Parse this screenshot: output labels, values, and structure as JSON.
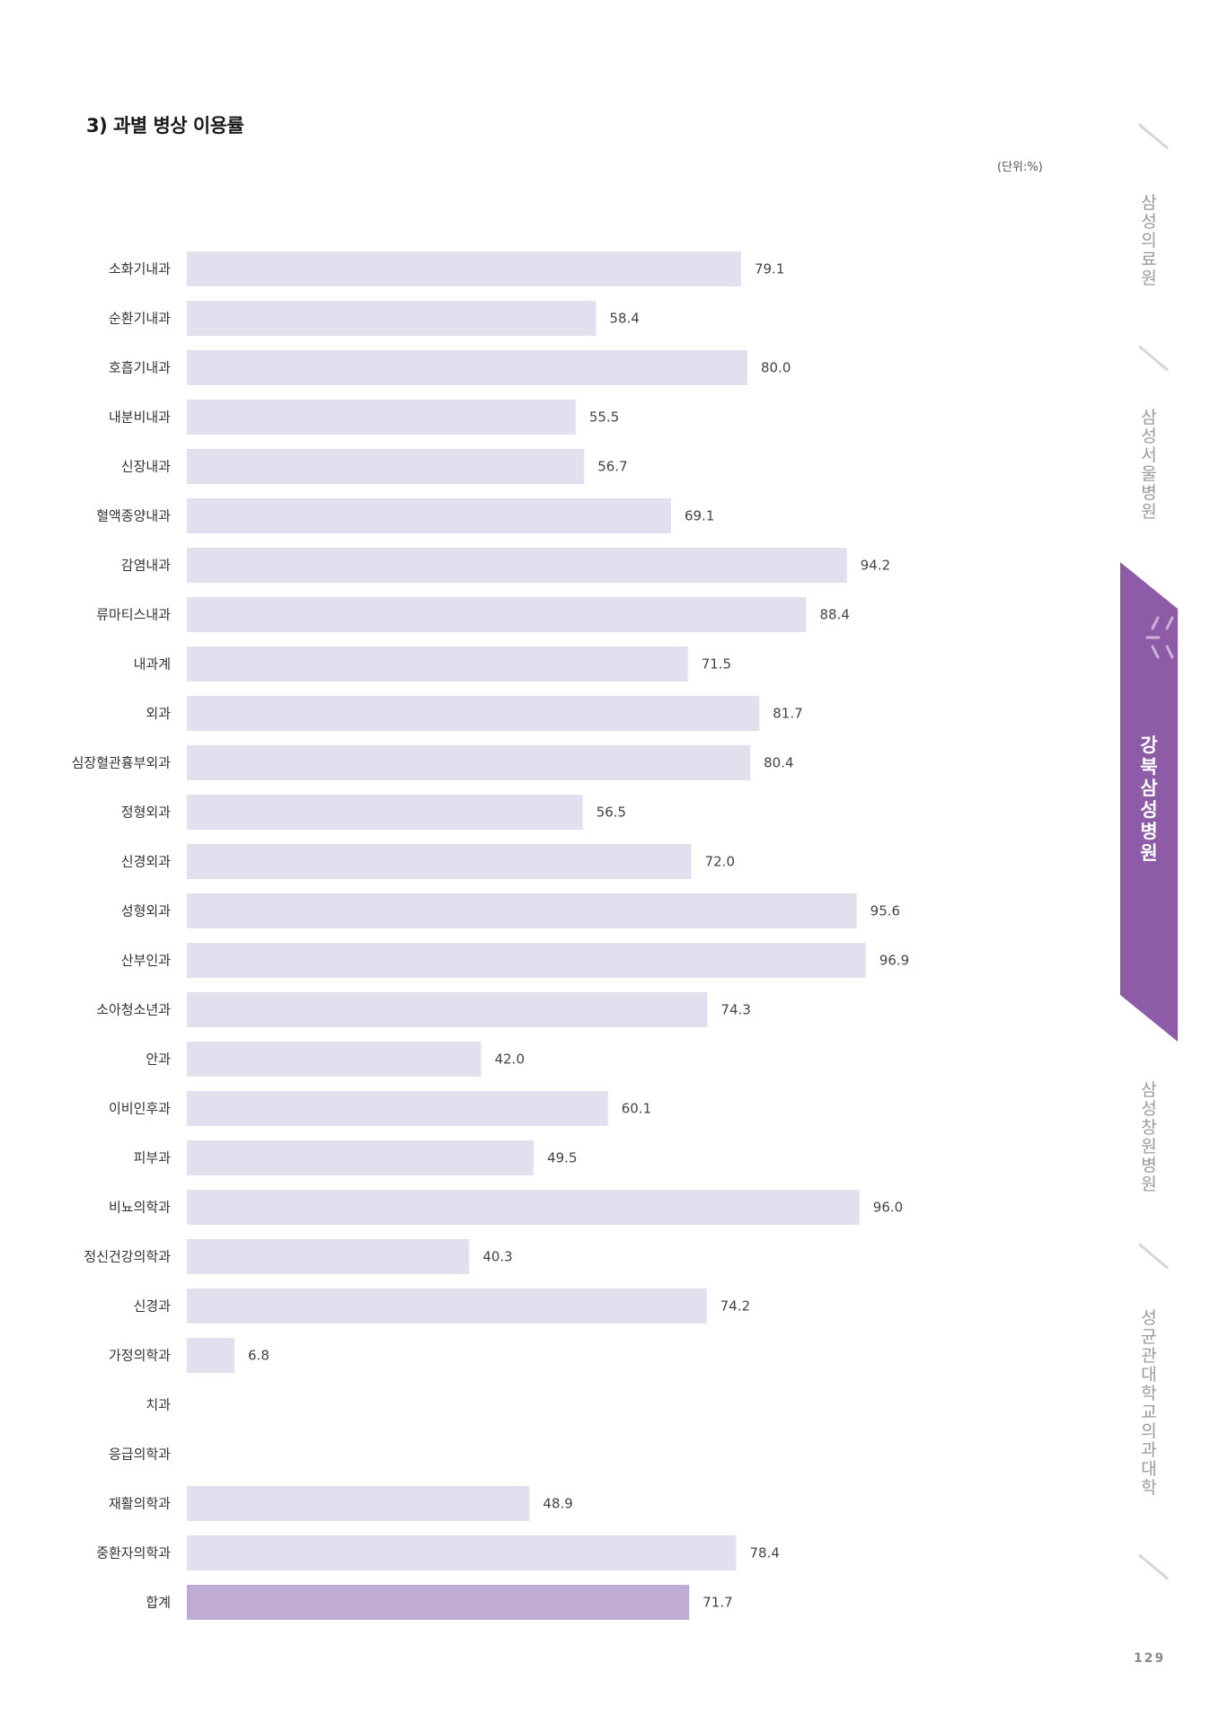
{
  "header": {
    "title": "3) 과별 병상 이용률",
    "unit": "(단위:%)"
  },
  "chart_data": {
    "type": "bar",
    "orientation": "horizontal",
    "title": "3) 과별 병상 이용률",
    "unit": "(단위:%)",
    "categories": [
      "소화기내과",
      "순환기내과",
      "호흡기내과",
      "내분비내과",
      "신장내과",
      "혈액종양내과",
      "감염내과",
      "류마티스내과",
      "내과계",
      "외과",
      "심장혈관흉부외과",
      "정형외과",
      "신경외과",
      "성형외과",
      "산부인과",
      "소아청소년과",
      "안과",
      "이비인후과",
      "피부과",
      "비뇨의학과",
      "정신건강의학과",
      "신경과",
      "가정의학과",
      "치과",
      "응급의학과",
      "재활의학과",
      "중환자의학과",
      "합계"
    ],
    "values": [
      79.1,
      58.4,
      80.0,
      55.5,
      56.7,
      69.1,
      94.2,
      88.4,
      71.5,
      81.7,
      80.4,
      56.5,
      72.0,
      95.6,
      96.9,
      74.3,
      42.0,
      60.1,
      49.5,
      96.0,
      40.3,
      74.2,
      6.8,
      null,
      null,
      48.9,
      78.4,
      71.7
    ],
    "value_labels": [
      "79.1",
      "58.4",
      "80.0",
      "55.5",
      "56.7",
      "69.1",
      "94.2",
      "88.4",
      "71.5",
      "81.7",
      "80.4",
      "56.5",
      "72.0",
      "95.6",
      "96.9",
      "74.3",
      "42.0",
      "60.1",
      "49.5",
      "96.0",
      "40.3",
      "74.2",
      "6.8",
      "",
      "",
      "48.9",
      "78.4",
      "71.7"
    ],
    "xlim": [
      0,
      100
    ],
    "grid": false,
    "colors": {
      "bar": "#e4dfef",
      "total_bar": "#bfabd3"
    }
  },
  "side_nav": {
    "items": [
      {
        "label": "삼성의료원",
        "active": false
      },
      {
        "label": "삼성서울병원",
        "active": false
      },
      {
        "label": "강북삼성병원",
        "active": true
      },
      {
        "label": "삼성창원병원",
        "active": false
      },
      {
        "label": "성균관대학교 의과대학",
        "active": false
      }
    ],
    "active_color": "#8e5ba8"
  },
  "footer": {
    "page_number": "129"
  }
}
